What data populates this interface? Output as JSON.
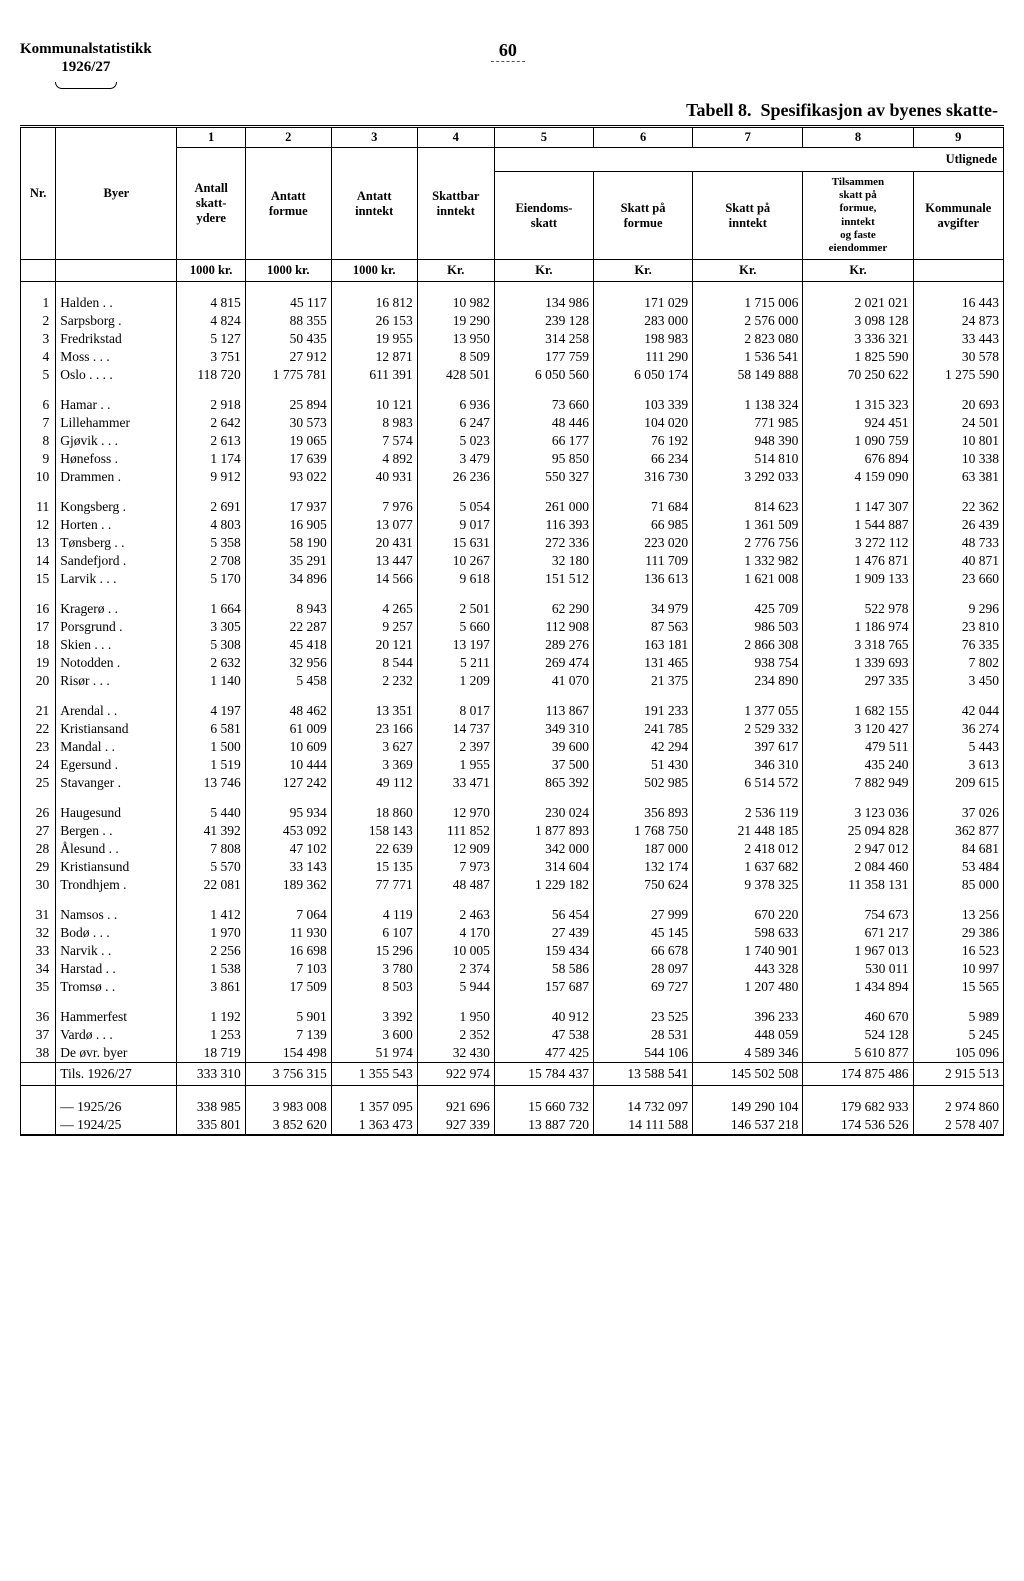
{
  "header": {
    "title_a": "Kommunalstatistikk",
    "title_b": "1926/27",
    "page_number": "60",
    "table_label": "Tabell 8.",
    "table_title": "Spesifikasjon av byenes skatte-"
  },
  "col_nums": [
    "1",
    "2",
    "3",
    "4",
    "5",
    "6",
    "7",
    "8",
    "9"
  ],
  "col_right_super": "Utlignede",
  "col_headers": {
    "nr": "Nr.",
    "byer": "Byer",
    "c1": "Antall\nskatt-\nydere",
    "c2": "Antatt\nformue",
    "c3": "Antatt\ninntekt",
    "c4": "Skattbar\ninntekt",
    "c5": "Eiendoms-\nskatt",
    "c6": "Skatt på\nformue",
    "c7": "Skatt på\ninntekt",
    "c8": "Tilsammen\nskatt på\nformue,\ninntekt\nog faste\neiendommer",
    "c9": "Kommunale\navgifter"
  },
  "units": [
    "",
    "",
    "1000 kr.",
    "1000 kr.",
    "1000 kr.",
    "Kr.",
    "Kr.",
    "Kr.",
    "Kr.",
    "Kr."
  ],
  "groups": [
    [
      {
        "nr": "1",
        "city": "Halden  .  .",
        "v": [
          "4 815",
          "45 117",
          "16 812",
          "10 982",
          "134 986",
          "171 029",
          "1 715 006",
          "2 021 021",
          "16 443"
        ]
      },
      {
        "nr": "2",
        "city": "Sarpsborg  .",
        "v": [
          "4 824",
          "88 355",
          "26 153",
          "19 290",
          "239 128",
          "283 000",
          "2 576 000",
          "3 098 128",
          "24 873"
        ]
      },
      {
        "nr": "3",
        "city": "Fredrikstad",
        "v": [
          "5 127",
          "50 435",
          "19 955",
          "13 950",
          "314 258",
          "198 983",
          "2 823 080",
          "3 336 321",
          "33 443"
        ]
      },
      {
        "nr": "4",
        "city": "Moss  .  .  .",
        "v": [
          "3 751",
          "27 912",
          "12 871",
          "8 509",
          "177 759",
          "111 290",
          "1 536 541",
          "1 825 590",
          "30 578"
        ]
      },
      {
        "nr": "5",
        "city": "Oslo .  .  .  .",
        "v": [
          "118 720",
          "1 775 781",
          "611 391",
          "428 501",
          "6 050 560",
          "6 050 174",
          "58 149 888",
          "70 250 622",
          "1 275 590"
        ]
      }
    ],
    [
      {
        "nr": "6",
        "city": "Hamar  .  .",
        "v": [
          "2 918",
          "25 894",
          "10 121",
          "6 936",
          "73 660",
          "103 339",
          "1 138 324",
          "1 315 323",
          "20 693"
        ]
      },
      {
        "nr": "7",
        "city": "Lillehammer",
        "v": [
          "2 642",
          "30 573",
          "8 983",
          "6 247",
          "48 446",
          "104 020",
          "771 985",
          "924 451",
          "24 501"
        ]
      },
      {
        "nr": "8",
        "city": "Gjøvik .  .  .",
        "v": [
          "2 613",
          "19 065",
          "7 574",
          "5 023",
          "66 177",
          "76 192",
          "948 390",
          "1 090 759",
          "10 801"
        ]
      },
      {
        "nr": "9",
        "city": "Hønefoss  .",
        "v": [
          "1 174",
          "17 639",
          "4 892",
          "3 479",
          "95 850",
          "66 234",
          "514 810",
          "676 894",
          "10 338"
        ]
      },
      {
        "nr": "10",
        "city": "Drammen  .",
        "v": [
          "9 912",
          "93 022",
          "40 931",
          "26 236",
          "550 327",
          "316 730",
          "3 292 033",
          "4 159 090",
          "63 381"
        ]
      }
    ],
    [
      {
        "nr": "11",
        "city": "Kongsberg  .",
        "v": [
          "2 691",
          "17 937",
          "7 976",
          "5 054",
          "261 000",
          "71 684",
          "814 623",
          "1 147 307",
          "22 362"
        ]
      },
      {
        "nr": "12",
        "city": "Horten  .  .",
        "v": [
          "4 803",
          "16 905",
          "13 077",
          "9 017",
          "116 393",
          "66 985",
          "1 361 509",
          "1 544 887",
          "26 439"
        ]
      },
      {
        "nr": "13",
        "city": "Tønsberg .  .",
        "v": [
          "5 358",
          "58 190",
          "20 431",
          "15 631",
          "272 336",
          "223 020",
          "2 776 756",
          "3 272 112",
          "48 733"
        ]
      },
      {
        "nr": "14",
        "city": "Sandefjord .",
        "v": [
          "2 708",
          "35 291",
          "13 447",
          "10 267",
          "32 180",
          "111 709",
          "1 332 982",
          "1 476 871",
          "40 871"
        ]
      },
      {
        "nr": "15",
        "city": "Larvik .  .  .",
        "v": [
          "5 170",
          "34 896",
          "14 566",
          "9 618",
          "151 512",
          "136 613",
          "1 621 008",
          "1 909 133",
          "23 660"
        ]
      }
    ],
    [
      {
        "nr": "16",
        "city": "Kragerø .  .",
        "v": [
          "1 664",
          "8 943",
          "4 265",
          "2 501",
          "62 290",
          "34 979",
          "425 709",
          "522 978",
          "9 296"
        ]
      },
      {
        "nr": "17",
        "city": "Porsgrund  .",
        "v": [
          "3 305",
          "22 287",
          "9 257",
          "5 660",
          "112 908",
          "87 563",
          "986 503",
          "1 186 974",
          "23 810"
        ]
      },
      {
        "nr": "18",
        "city": "Skien  .  .  .",
        "v": [
          "5 308",
          "45 418",
          "20 121",
          "13 197",
          "289 276",
          "163 181",
          "2 866 308",
          "3 318 765",
          "76 335"
        ]
      },
      {
        "nr": "19",
        "city": "Notodden  .",
        "v": [
          "2 632",
          "32 956",
          "8 544",
          "5 211",
          "269 474",
          "131 465",
          "938 754",
          "1 339 693",
          "7 802"
        ]
      },
      {
        "nr": "20",
        "city": "Risør  .  .  .",
        "v": [
          "1 140",
          "5 458",
          "2 232",
          "1 209",
          "41 070",
          "21 375",
          "234 890",
          "297 335",
          "3 450"
        ]
      }
    ],
    [
      {
        "nr": "21",
        "city": "Arendal  .  .",
        "v": [
          "4 197",
          "48 462",
          "13 351",
          "8 017",
          "113 867",
          "191 233",
          "1 377 055",
          "1 682 155",
          "42 044"
        ]
      },
      {
        "nr": "22",
        "city": "Kristiansand",
        "v": [
          "6 581",
          "61 009",
          "23 166",
          "14 737",
          "349 310",
          "241 785",
          "2 529 332",
          "3 120 427",
          "36 274"
        ]
      },
      {
        "nr": "23",
        "city": "Mandal  .  .",
        "v": [
          "1 500",
          "10 609",
          "3 627",
          "2 397",
          "39 600",
          "42 294",
          "397 617",
          "479 511",
          "5 443"
        ]
      },
      {
        "nr": "24",
        "city": "Egersund  .",
        "v": [
          "1 519",
          "10 444",
          "3 369",
          "1 955",
          "37 500",
          "51 430",
          "346 310",
          "435 240",
          "3 613"
        ]
      },
      {
        "nr": "25",
        "city": "Stavanger  .",
        "v": [
          "13 746",
          "127 242",
          "49 112",
          "33 471",
          "865 392",
          "502 985",
          "6 514 572",
          "7 882 949",
          "209 615"
        ]
      }
    ],
    [
      {
        "nr": "26",
        "city": "Haugesund",
        "v": [
          "5 440",
          "95 934",
          "18 860",
          "12 970",
          "230 024",
          "356 893",
          "2 536 119",
          "3 123 036",
          "37 026"
        ]
      },
      {
        "nr": "27",
        "city": "Bergen  .  .",
        "v": [
          "41 392",
          "453 092",
          "158 143",
          "111 852",
          "1 877 893",
          "1 768 750",
          "21 448 185",
          "25 094 828",
          "362 877"
        ]
      },
      {
        "nr": "28",
        "city": "Ålesund  .  .",
        "v": [
          "7 808",
          "47 102",
          "22 639",
          "12 909",
          "342 000",
          "187 000",
          "2 418 012",
          "2 947 012",
          "84 681"
        ]
      },
      {
        "nr": "29",
        "city": "Kristiansund",
        "v": [
          "5 570",
          "33 143",
          "15 135",
          "7 973",
          "314 604",
          "132 174",
          "1 637 682",
          "2 084 460",
          "53 484"
        ]
      },
      {
        "nr": "30",
        "city": "Trondhjem .",
        "v": [
          "22 081",
          "189 362",
          "77 771",
          "48 487",
          "1 229 182",
          "750 624",
          "9 378 325",
          "11 358 131",
          "85 000"
        ]
      }
    ],
    [
      {
        "nr": "31",
        "city": "Namsos  .  .",
        "v": [
          "1 412",
          "7 064",
          "4 119",
          "2 463",
          "56 454",
          "27 999",
          "670 220",
          "754 673",
          "13 256"
        ]
      },
      {
        "nr": "32",
        "city": "Bodø .  .  .",
        "v": [
          "1 970",
          "11 930",
          "6 107",
          "4 170",
          "27 439",
          "45 145",
          "598 633",
          "671 217",
          "29 386"
        ]
      },
      {
        "nr": "33",
        "city": "Narvik  .  .",
        "v": [
          "2 256",
          "16 698",
          "15 296",
          "10 005",
          "159 434",
          "66 678",
          "1 740 901",
          "1 967 013",
          "16 523"
        ]
      },
      {
        "nr": "34",
        "city": "Harstad  .  .",
        "v": [
          "1 538",
          "7 103",
          "3 780",
          "2 374",
          "58 586",
          "28 097",
          "443 328",
          "530 011",
          "10 997"
        ]
      },
      {
        "nr": "35",
        "city": "Tromsø  .  .",
        "v": [
          "3 861",
          "17 509",
          "8 503",
          "5 944",
          "157 687",
          "69 727",
          "1 207 480",
          "1 434 894",
          "15 565"
        ]
      }
    ],
    [
      {
        "nr": "36",
        "city": "Hammerfest",
        "v": [
          "1 192",
          "5 901",
          "3 392",
          "1 950",
          "40 912",
          "23 525",
          "396 233",
          "460 670",
          "5 989"
        ]
      },
      {
        "nr": "37",
        "city": "Vardø .  .  .",
        "v": [
          "1 253",
          "7 139",
          "3 600",
          "2 352",
          "47 538",
          "28 531",
          "448 059",
          "524 128",
          "5 245"
        ]
      },
      {
        "nr": "38",
        "city": "De øvr. byer",
        "v": [
          "18 719",
          "154 498",
          "51 974",
          "32 430",
          "477 425",
          "544 106",
          "4 589 346",
          "5 610 877",
          "105 096"
        ]
      }
    ]
  ],
  "totals": [
    {
      "label": "Tils. 1926/27",
      "v": [
        "333 310",
        "3 756 315",
        "1 355 543",
        "922 974",
        "15 784 437",
        "13 588 541",
        "145 502 508",
        "174 875 486",
        "2 915 513"
      ]
    }
  ],
  "prev": [
    {
      "label": "—   1925/26",
      "v": [
        "338 985",
        "3 983 008",
        "1 357 095",
        "921 696",
        "15 660 732",
        "14 732 097",
        "149 290 104",
        "179 682 933",
        "2 974 860"
      ]
    },
    {
      "label": "—   1924/25",
      "v": [
        "335 801",
        "3 852 620",
        "1 363 473",
        "927 339",
        "13 887 720",
        "14 111 588",
        "146 537 218",
        "174 536 526",
        "2 578 407"
      ]
    }
  ]
}
